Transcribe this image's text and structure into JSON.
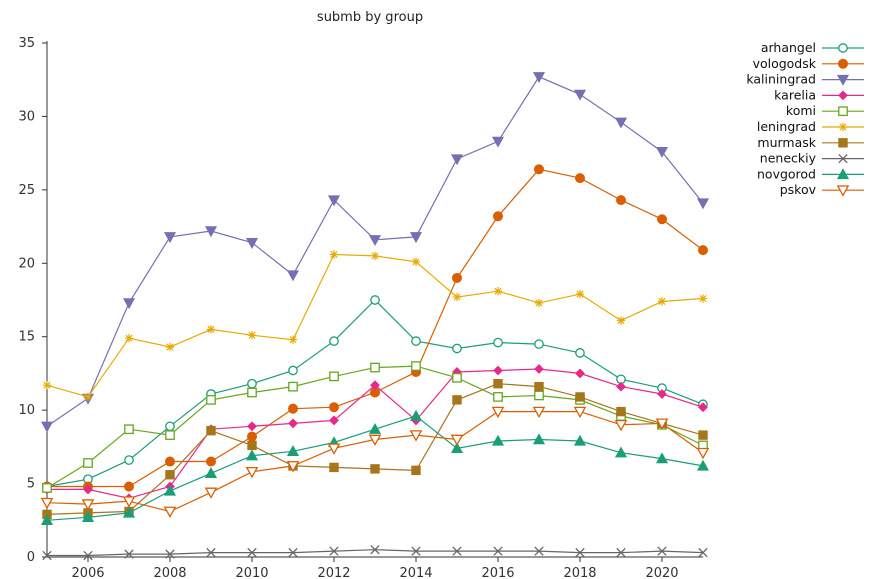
{
  "chart_data": {
    "type": "line",
    "title": "submb by group",
    "xlabel": "",
    "ylabel": "",
    "xlim": [
      2005,
      2021
    ],
    "ylim": [
      0,
      35
    ],
    "x_ticks": [
      "2006",
      "2008",
      "2010",
      "2012",
      "2014",
      "2016",
      "2018",
      "2020"
    ],
    "y_ticks": [
      "0",
      "5",
      "10",
      "15",
      "20",
      "25",
      "30",
      "35"
    ],
    "grid": false,
    "legend_position": "top-right",
    "x": [
      2005,
      2006,
      2007,
      2008,
      2009,
      2010,
      2011,
      2012,
      2013,
      2014,
      2015,
      2016,
      2017,
      2018,
      2019,
      2020,
      2021
    ],
    "series": [
      {
        "name": "arhangel",
        "color": "#1b9e77",
        "marker": "circle-open",
        "values": [
          4.8,
          5.3,
          6.6,
          8.9,
          11.1,
          11.8,
          12.7,
          14.7,
          17.5,
          14.7,
          14.2,
          14.6,
          14.5,
          13.9,
          12.1,
          11.5,
          10.4
        ]
      },
      {
        "name": "vologodsk",
        "color": "#d95f02",
        "marker": "circle-filled",
        "values": [
          4.8,
          4.8,
          4.8,
          6.5,
          6.5,
          8.2,
          10.1,
          10.2,
          11.2,
          12.6,
          19.0,
          23.2,
          26.4,
          25.8,
          24.3,
          23.0,
          20.9
        ]
      },
      {
        "name": "kaliningrad",
        "color": "#7570b3",
        "marker": "triangle-down",
        "values": [
          8.9,
          10.8,
          17.3,
          21.8,
          22.2,
          21.4,
          19.2,
          24.3,
          21.6,
          21.8,
          27.1,
          28.3,
          32.7,
          31.5,
          29.6,
          27.6,
          24.1
        ]
      },
      {
        "name": "karelia",
        "color": "#e7298a",
        "marker": "diamond",
        "values": [
          4.6,
          4.6,
          4.0,
          4.8,
          8.7,
          8.9,
          9.1,
          9.3,
          11.7,
          9.3,
          12.6,
          12.7,
          12.8,
          12.5,
          11.6,
          11.1,
          10.2
        ]
      },
      {
        "name": "komi",
        "color": "#66a61e",
        "marker": "square-open",
        "values": [
          4.7,
          6.4,
          8.7,
          8.3,
          10.7,
          11.2,
          11.6,
          12.3,
          12.9,
          13.0,
          12.2,
          10.9,
          11.0,
          10.7,
          9.6,
          9.0,
          7.6
        ]
      },
      {
        "name": "leningrad",
        "color": "#e6ab02",
        "marker": "star",
        "values": [
          11.7,
          10.9,
          14.9,
          14.3,
          15.5,
          15.1,
          14.8,
          20.6,
          20.5,
          20.1,
          17.7,
          18.1,
          17.3,
          17.9,
          16.1,
          17.4,
          17.6
        ]
      },
      {
        "name": "murmask",
        "color": "#a6761d",
        "marker": "square-filled",
        "values": [
          2.9,
          3.0,
          3.1,
          5.6,
          8.6,
          7.6,
          6.2,
          6.1,
          6.0,
          5.9,
          10.7,
          11.8,
          11.6,
          10.9,
          9.9,
          9.1,
          8.3
        ]
      },
      {
        "name": "neneckiy",
        "color": "#666666",
        "marker": "x",
        "values": [
          0.1,
          0.1,
          0.2,
          0.2,
          0.3,
          0.3,
          0.3,
          0.4,
          0.5,
          0.4,
          0.4,
          0.4,
          0.4,
          0.3,
          0.3,
          0.4,
          0.3
        ]
      },
      {
        "name": "novgorod",
        "color": "#1b9e77",
        "marker": "triangle-up",
        "values": [
          2.5,
          2.7,
          3.0,
          4.5,
          5.7,
          6.9,
          7.2,
          7.8,
          8.7,
          9.6,
          7.4,
          7.9,
          8.0,
          7.9,
          7.1,
          6.7,
          6.2
        ]
      },
      {
        "name": "pskov",
        "color": "#d95f02",
        "marker": "triangle-down-open",
        "values": [
          3.7,
          3.6,
          3.8,
          3.1,
          4.4,
          5.8,
          6.2,
          7.4,
          8.0,
          8.3,
          8.0,
          9.9,
          9.9,
          9.9,
          9.0,
          9.1,
          7.1
        ]
      }
    ]
  }
}
